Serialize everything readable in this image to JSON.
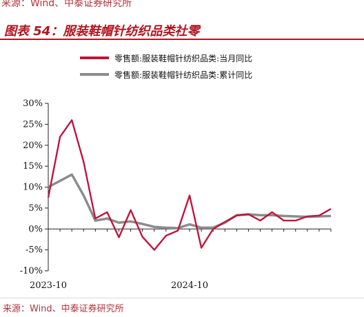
{
  "figure": {
    "top_source": "来源：Wind、中泰证券研究所",
    "title": "图表 54：服装鞋帽针纺织品类社零",
    "bottom_source": "来源：Wind、中泰证券研究所"
  },
  "chart_data": {
    "type": "line",
    "title": "",
    "xlabel": "",
    "ylabel": "",
    "ylim": [
      -10,
      30
    ],
    "y_ticks": [
      -10,
      -5,
      0,
      5,
      10,
      15,
      20,
      25,
      30
    ],
    "y_tick_labels": [
      "-10%",
      "-5%",
      "0%",
      "5%",
      "10%",
      "15%",
      "20%",
      "25%",
      "30%"
    ],
    "x": [
      "2023-10",
      "2023-11",
      "2023-12",
      "2024-01",
      "2024-02",
      "2024-03",
      "2024-04",
      "2024-05",
      "2024-06",
      "2024-07",
      "2024-08",
      "2024-09",
      "2024-10",
      "2024-11",
      "2024-12",
      "2025-01",
      "2025-02",
      "2025-03",
      "2025-04",
      "2025-05",
      "2025-06",
      "2025-07",
      "2025-08",
      "2025-09",
      "2025-10"
    ],
    "x_tick_labels": [
      {
        "index": 0,
        "label": "2023-10"
      },
      {
        "index": 12,
        "label": "2024-10"
      }
    ],
    "grid": false,
    "legend_position": "top",
    "series": [
      {
        "name": "零售额:服装鞋帽针纺织品类:当月同比",
        "color": "#c0143c",
        "values": [
          7.5,
          22.0,
          26.0,
          16.0,
          2.5,
          4.0,
          -2.0,
          4.5,
          -1.9,
          -5.0,
          -1.6,
          -0.4,
          8.0,
          -4.5,
          0.0,
          1.7,
          3.2,
          3.5,
          2.0,
          4.0,
          2.0,
          2.0,
          3.0,
          3.2,
          4.8
        ]
      },
      {
        "name": "零售额:服装鞋帽针纺织品类:累计同比",
        "color": "#8c8c8c",
        "values": [
          10.0,
          11.5,
          13.0,
          8.0,
          2.0,
          2.5,
          1.5,
          1.8,
          1.2,
          0.5,
          0.3,
          0.2,
          1.1,
          0.3,
          0.3,
          1.5,
          3.3,
          3.5,
          3.3,
          3.3,
          3.1,
          3.0,
          2.9,
          3.0,
          3.1
        ]
      }
    ]
  }
}
